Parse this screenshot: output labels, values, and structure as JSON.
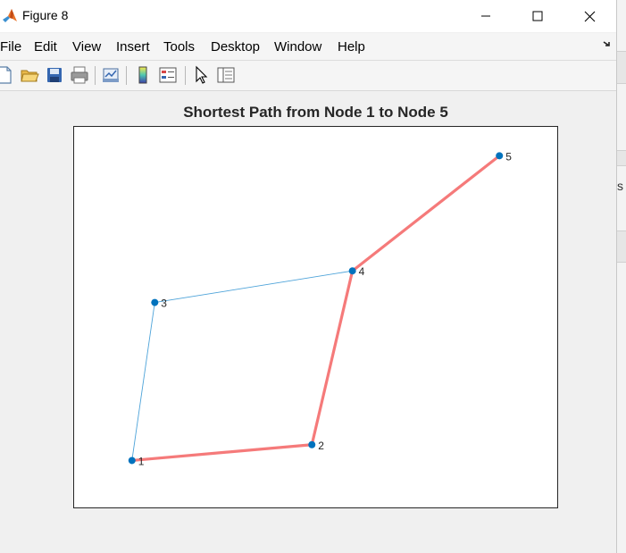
{
  "window": {
    "title": "Figure 8",
    "menu": [
      "File",
      "Edit",
      "View",
      "Insert",
      "Tools",
      "Desktop",
      "Window",
      "Help"
    ]
  },
  "toolbar_icons": [
    "new-figure-icon",
    "open-file-icon",
    "save-icon",
    "print-icon",
    "link-plot-icon",
    "colorbar-icon",
    "legend-icon",
    "pointer-icon",
    "property-inspector-icon"
  ],
  "background_window_text": "s",
  "chart_data": {
    "type": "graph",
    "title": "Shortest Path from Node 1 to Node 5",
    "nodes": [
      {
        "id": "1",
        "x": 1.0,
        "y": 1.0
      },
      {
        "id": "2",
        "x": 4.55,
        "y": 1.35
      },
      {
        "id": "3",
        "x": 1.45,
        "y": 4.5
      },
      {
        "id": "4",
        "x": 5.35,
        "y": 5.2
      },
      {
        "id": "5",
        "x": 8.25,
        "y": 7.75
      }
    ],
    "edges": [
      {
        "source": "1",
        "target": "2",
        "highlighted": true
      },
      {
        "source": "1",
        "target": "3",
        "highlighted": false
      },
      {
        "source": "3",
        "target": "4",
        "highlighted": false
      },
      {
        "source": "2",
        "target": "4",
        "highlighted": true
      },
      {
        "source": "4",
        "target": "5",
        "highlighted": true
      }
    ],
    "colors": {
      "node": "#0072bd",
      "edge": "#4da3d9",
      "path": "#f57a7a"
    },
    "xlim": [
      -0.15,
      9.4
    ],
    "ylim": [
      -0.05,
      8.4
    ],
    "grid": false
  }
}
